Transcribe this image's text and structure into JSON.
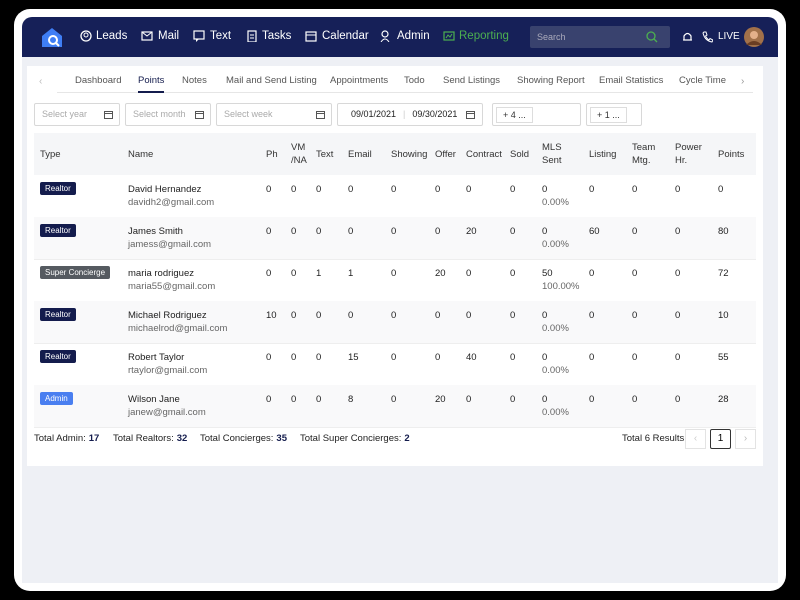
{
  "nav": {
    "items": [
      "Leads",
      "Mail",
      "Text",
      "Tasks",
      "Calendar",
      "Admin",
      "Reporting"
    ],
    "active_color": "#4caf50",
    "search_placeholder": "Search",
    "live": "LIVE"
  },
  "tabs": {
    "items": [
      "Dashboard",
      "Points",
      "Notes",
      "Mail and Send Listing",
      "Appointments",
      "Todo",
      "Send Listings",
      "Showing Report",
      "Email Statistics",
      "Cycle Time"
    ],
    "active": 1
  },
  "filters": {
    "year": "Select year",
    "month": "Select month",
    "week": "Select week",
    "start_date": "09/01/2021",
    "end_date": "09/30/2021",
    "tag_a": "+ 4 ...",
    "tag_b": "+ 1 ..."
  },
  "table": {
    "columns": [
      "Type",
      "Name",
      "Ph",
      "VM /NA",
      "Text",
      "Email",
      "Showing",
      "Offer",
      "Contract",
      "Sold",
      "MLS Sent",
      "Listing",
      "Team Mtg.",
      "Power Hr.",
      "Points"
    ],
    "rows": [
      {
        "type": "Realtor",
        "badge_color": "#141c4d",
        "name": "David Hernandez",
        "email": "davidh2@gmail.com",
        "values": [
          0,
          0,
          0,
          0,
          0,
          0,
          0,
          0,
          0,
          0,
          0,
          0,
          0
        ],
        "mls_pct": "0.00%"
      },
      {
        "type": "Realtor",
        "badge_color": "#141c4d",
        "name": "James Smith",
        "email": "jamess@gmail.com",
        "values": [
          0,
          0,
          0,
          0,
          0,
          0,
          20,
          0,
          0,
          60,
          0,
          0,
          80
        ],
        "mls_pct": "0.00%"
      },
      {
        "type": "Super Concierge",
        "badge_color": "#555a60",
        "name": "maria rodriguez",
        "email": "maria55@gmail.com",
        "values": [
          0,
          0,
          1,
          1,
          0,
          20,
          0,
          0,
          50,
          0,
          0,
          0,
          72
        ],
        "mls_pct": "100.00%"
      },
      {
        "type": "Realtor",
        "badge_color": "#141c4d",
        "name": "Michael Rodriguez",
        "email": "michaelrod@gmail.com",
        "values": [
          10,
          0,
          0,
          0,
          0,
          0,
          0,
          0,
          0,
          0,
          0,
          0,
          10
        ],
        "mls_pct": "0.00%"
      },
      {
        "type": "Realtor",
        "badge_color": "#141c4d",
        "name": "Robert Taylor",
        "email": "rtaylor@gmail.com",
        "values": [
          0,
          0,
          0,
          15,
          0,
          0,
          40,
          0,
          0,
          0,
          0,
          0,
          55
        ],
        "mls_pct": "0.00%"
      },
      {
        "type": "Admin",
        "badge_color": "#4a7ff0",
        "name": "Wilson Jane",
        "email": "janew@gmail.com",
        "values": [
          0,
          0,
          0,
          8,
          0,
          20,
          0,
          0,
          0,
          0,
          0,
          0,
          28
        ],
        "mls_pct": "0.00%"
      }
    ]
  },
  "summary": [
    {
      "label": "Total Admin:",
      "value": 17
    },
    {
      "label": "Total Realtors:",
      "value": 32
    },
    {
      "label": "Total Concierges:",
      "value": 35
    },
    {
      "label": "Total Super Concierges:",
      "value": 2
    }
  ],
  "pagination": {
    "results": "Total 6 Results",
    "page": 1
  }
}
